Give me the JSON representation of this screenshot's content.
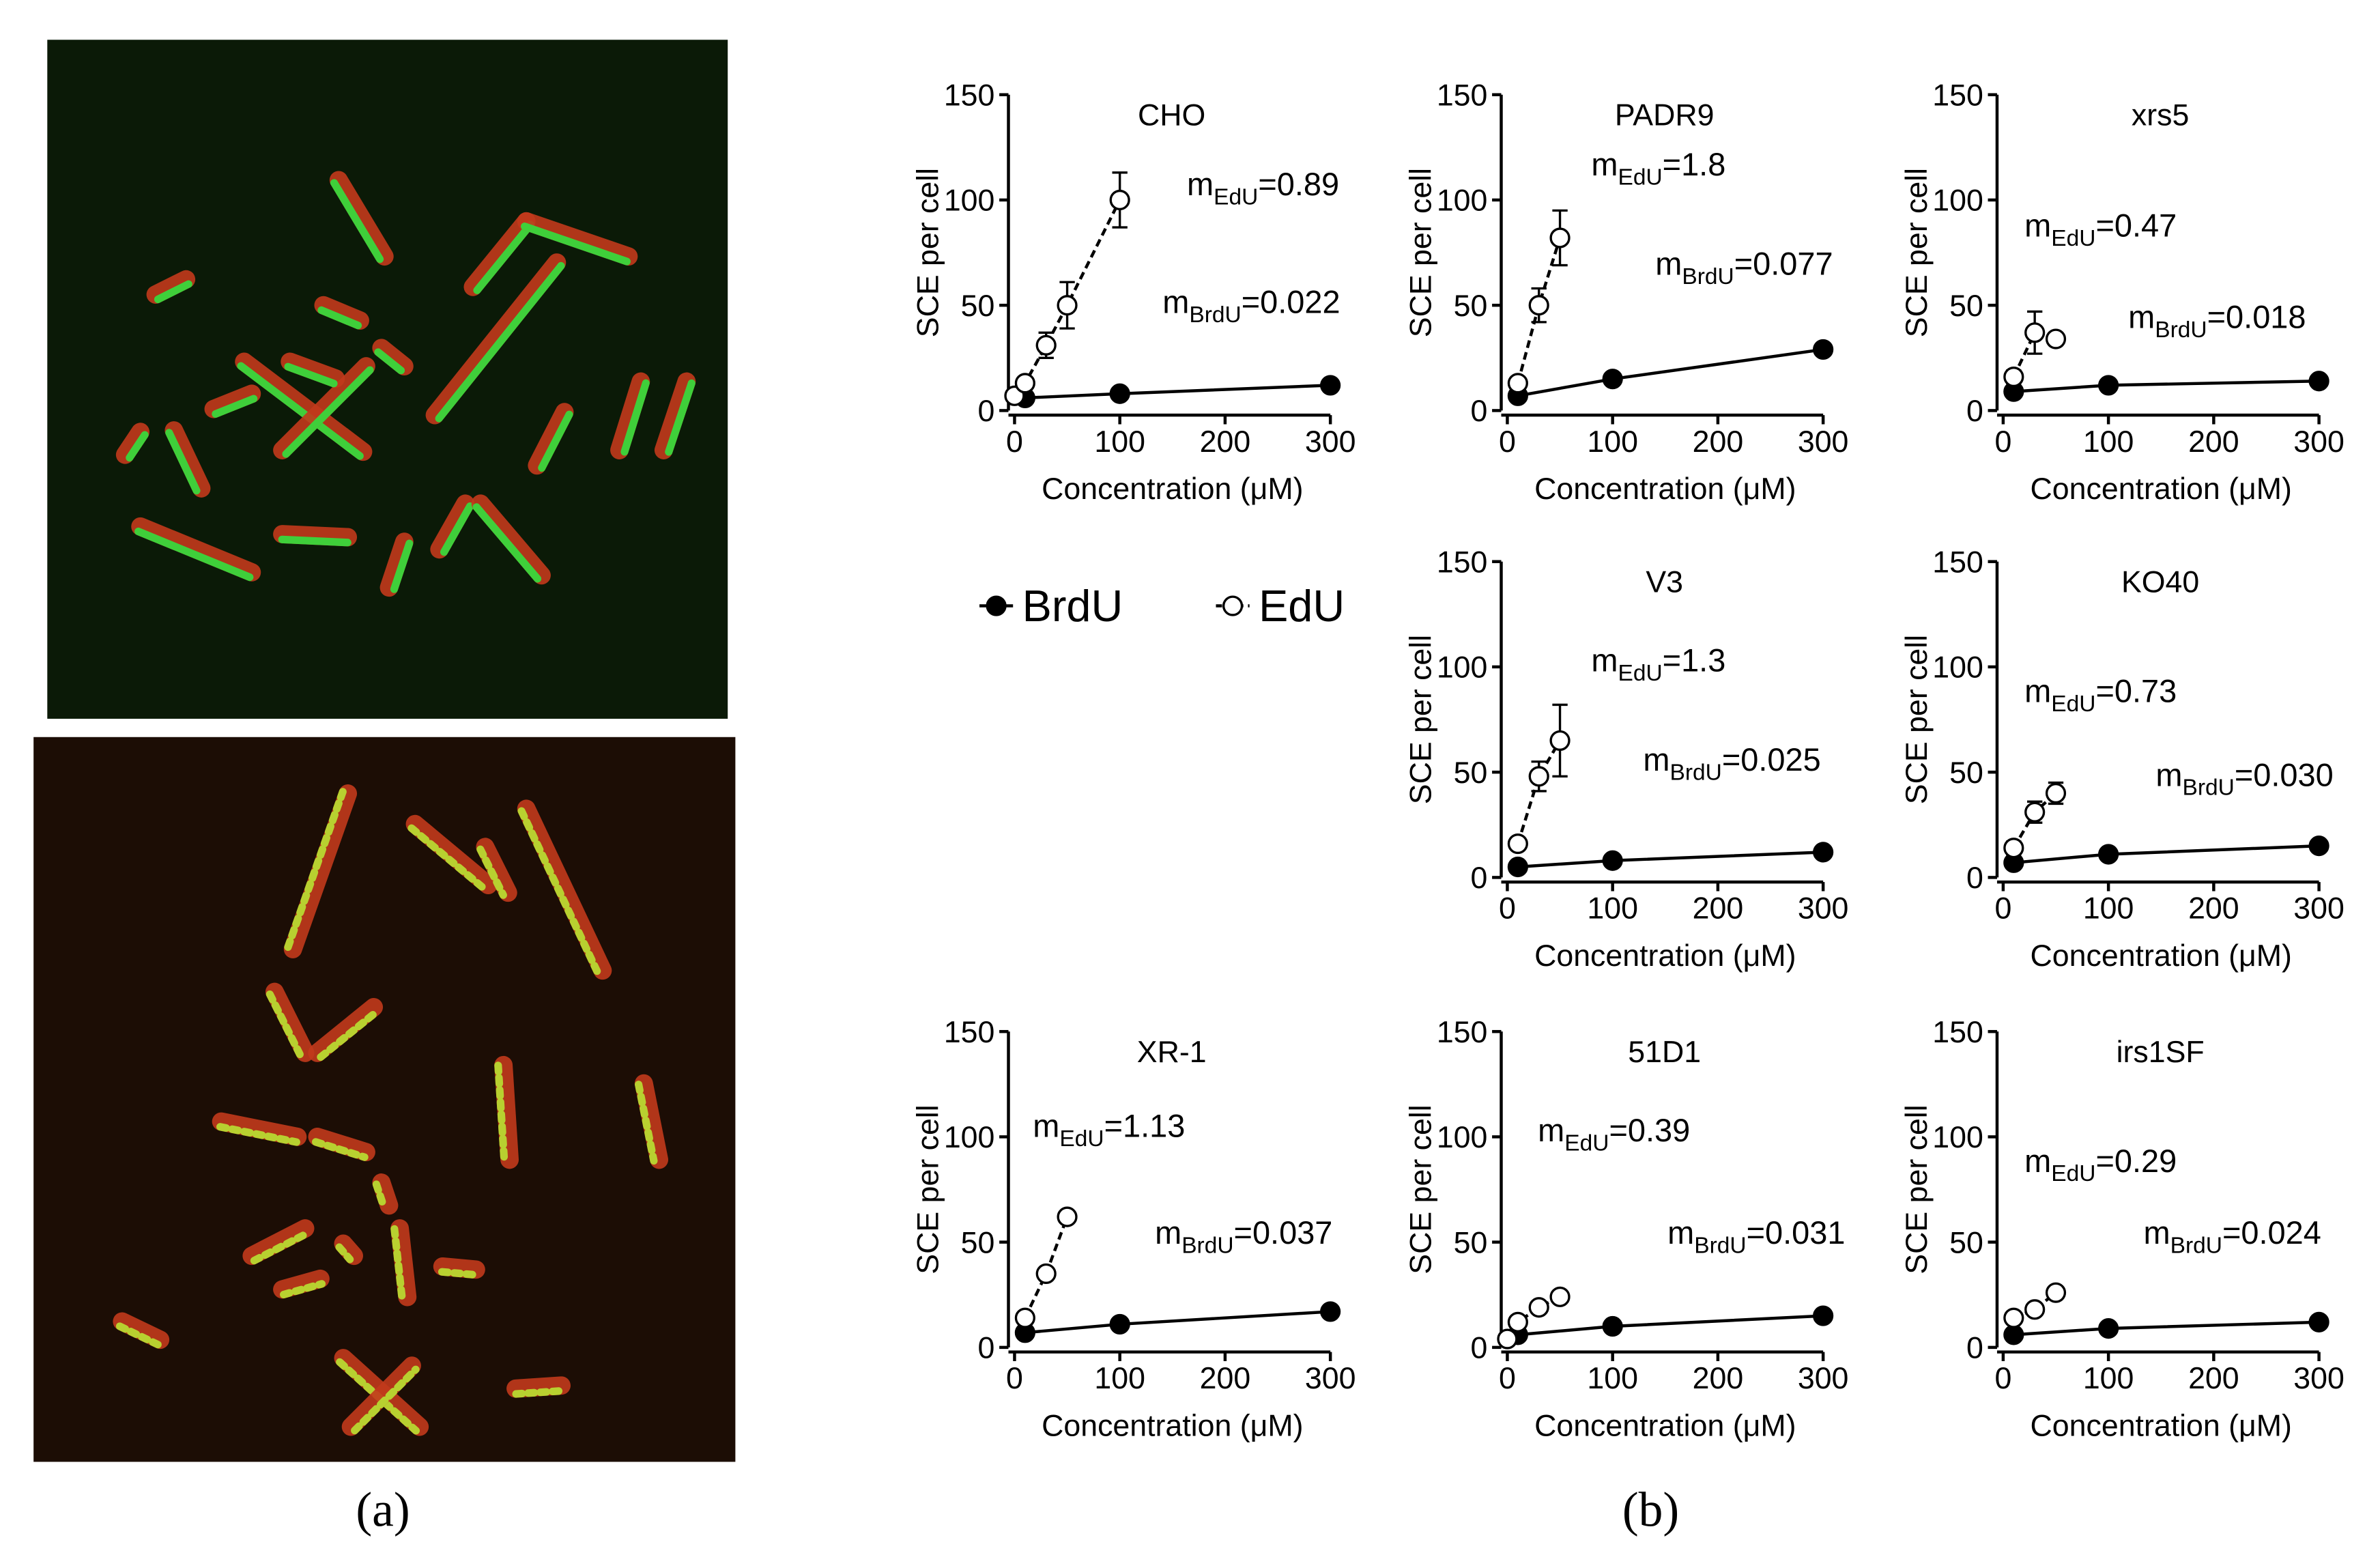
{
  "panel_labels": [
    "(a)",
    "(b)"
  ],
  "legend": [
    {
      "name": "BrdU",
      "marker": "filled",
      "color": "#000000"
    },
    {
      "name": "EdU",
      "marker": "open",
      "color": "#000000"
    }
  ],
  "chart_data": [
    {
      "type": "line",
      "title": "CHO",
      "x_label": "Concentration (μM)",
      "y_label": "SCE per cell",
      "xlim": [
        0,
        300
      ],
      "ylim": [
        0,
        150
      ],
      "xticks": [
        0,
        100,
        200,
        300
      ],
      "yticks": [
        0,
        50,
        100,
        150
      ],
      "annotations": [
        [
          "m",
          "EdU",
          "=0.89"
        ],
        [
          "m",
          "BrdU",
          "=0.022"
        ]
      ],
      "series": [
        {
          "marker": "filled",
          "line": "solid",
          "color": "#000000",
          "x": [
            10,
            100,
            300
          ],
          "values": [
            6,
            8,
            12
          ],
          "errors": [
            null,
            null,
            null
          ]
        },
        {
          "marker": "open",
          "line": "dashed",
          "color": "#000000",
          "x": [
            0,
            10,
            30,
            50,
            100
          ],
          "values": [
            7,
            13,
            31,
            50,
            100
          ],
          "errors": [
            null,
            null,
            6,
            11,
            13
          ]
        }
      ]
    },
    {
      "type": "line",
      "title": "PADR9",
      "x_label": "Concentration (μM)",
      "y_label": "SCE per cell",
      "xlim": [
        0,
        300
      ],
      "ylim": [
        0,
        150
      ],
      "xticks": [
        0,
        100,
        200,
        300
      ],
      "yticks": [
        0,
        50,
        100,
        150
      ],
      "annotations": [
        [
          "m",
          "EdU",
          "=1.8"
        ],
        [
          "m",
          "BrdU",
          "=0.077"
        ]
      ],
      "series": [
        {
          "marker": "filled",
          "line": "solid",
          "color": "#000000",
          "x": [
            10,
            100,
            300
          ],
          "values": [
            7,
            15,
            29
          ],
          "errors": [
            null,
            null,
            null
          ]
        },
        {
          "marker": "open",
          "line": "dashed",
          "color": "#000000",
          "x": [
            10,
            30,
            50
          ],
          "values": [
            13,
            50,
            82
          ],
          "errors": [
            null,
            8,
            13
          ]
        }
      ]
    },
    {
      "type": "line",
      "title": "xrs5",
      "x_label": "Concentration (μM)",
      "y_label": "SCE per cell",
      "xlim": [
        0,
        300
      ],
      "ylim": [
        0,
        150
      ],
      "xticks": [
        0,
        100,
        200,
        300
      ],
      "yticks": [
        0,
        50,
        100,
        150
      ],
      "annotations": [
        [
          "m",
          "EdU",
          "=0.47"
        ],
        [
          "m",
          "BrdU",
          "=0.018"
        ]
      ],
      "series": [
        {
          "marker": "filled",
          "line": "solid",
          "color": "#000000",
          "x": [
            10,
            100,
            300
          ],
          "values": [
            9,
            12,
            14
          ],
          "errors": [
            null,
            null,
            null
          ]
        },
        {
          "marker": "open",
          "line": "dashed",
          "color": "#000000",
          "x": [
            10,
            30,
            50
          ],
          "values": [
            16,
            37,
            34
          ],
          "errors": [
            3,
            10,
            2
          ]
        }
      ]
    },
    {
      "type": "line",
      "title": "V3",
      "x_label": "Concentration (μM)",
      "y_label": "SCE per cell",
      "xlim": [
        0,
        300
      ],
      "ylim": [
        0,
        150
      ],
      "xticks": [
        0,
        100,
        200,
        300
      ],
      "yticks": [
        0,
        50,
        100,
        150
      ],
      "annotations": [
        [
          "m",
          "EdU",
          "=1.3"
        ],
        [
          "m",
          "BrdU",
          "=0.025"
        ]
      ],
      "series": [
        {
          "marker": "filled",
          "line": "solid",
          "color": "#000000",
          "x": [
            10,
            100,
            300
          ],
          "values": [
            5,
            8,
            12
          ],
          "errors": [
            null,
            null,
            null
          ]
        },
        {
          "marker": "open",
          "line": "dashed",
          "color": "#000000",
          "x": [
            10,
            30,
            50
          ],
          "values": [
            16,
            48,
            65
          ],
          "errors": [
            null,
            7,
            17
          ]
        }
      ]
    },
    {
      "type": "line",
      "title": "KO40",
      "x_label": "Concentration (μM)",
      "y_label": "SCE per cell",
      "xlim": [
        0,
        300
      ],
      "ylim": [
        0,
        150
      ],
      "xticks": [
        0,
        100,
        200,
        300
      ],
      "yticks": [
        0,
        50,
        100,
        150
      ],
      "annotations": [
        [
          "m",
          "EdU",
          "=0.73"
        ],
        [
          "m",
          "BrdU",
          "=0.030"
        ]
      ],
      "series": [
        {
          "marker": "filled",
          "line": "solid",
          "color": "#000000",
          "x": [
            10,
            100,
            300
          ],
          "values": [
            7,
            11,
            15
          ],
          "errors": [
            null,
            null,
            null
          ]
        },
        {
          "marker": "open",
          "line": "dashed",
          "color": "#000000",
          "x": [
            10,
            30,
            50
          ],
          "values": [
            14,
            31,
            40
          ],
          "errors": [
            3,
            5,
            5
          ]
        }
      ]
    },
    {
      "type": "line",
      "title": "XR-1",
      "x_label": "Concentration (μM)",
      "y_label": "SCE per cell",
      "xlim": [
        0,
        300
      ],
      "ylim": [
        0,
        150
      ],
      "xticks": [
        0,
        100,
        200,
        300
      ],
      "yticks": [
        0,
        50,
        100,
        150
      ],
      "annotations": [
        [
          "m",
          "EdU",
          "=1.13"
        ],
        [
          "m",
          "BrdU",
          "=0.037"
        ]
      ],
      "series": [
        {
          "marker": "filled",
          "line": "solid",
          "color": "#000000",
          "x": [
            10,
            100,
            300
          ],
          "values": [
            7,
            11,
            17
          ],
          "errors": [
            null,
            null,
            null
          ]
        },
        {
          "marker": "open",
          "line": "dashed",
          "color": "#000000",
          "x": [
            10,
            30,
            50
          ],
          "values": [
            14,
            35,
            62
          ],
          "errors": [
            null,
            null,
            null
          ]
        }
      ]
    },
    {
      "type": "line",
      "title": "51D1",
      "x_label": "Concentration (μM)",
      "y_label": "SCE per cell",
      "xlim": [
        0,
        300
      ],
      "ylim": [
        0,
        150
      ],
      "xticks": [
        0,
        100,
        200,
        300
      ],
      "yticks": [
        0,
        50,
        100,
        150
      ],
      "annotations": [
        [
          "m",
          "EdU",
          "=0.39"
        ],
        [
          "m",
          "BrdU",
          "=0.031"
        ]
      ],
      "series": [
        {
          "marker": "filled",
          "line": "solid",
          "color": "#000000",
          "x": [
            10,
            100,
            300
          ],
          "values": [
            6,
            10,
            15
          ],
          "errors": [
            null,
            null,
            null
          ]
        },
        {
          "marker": "open",
          "line": "dashed",
          "color": "#000000",
          "x": [
            0,
            10,
            30,
            50
          ],
          "values": [
            4,
            12,
            19,
            24
          ],
          "errors": [
            null,
            null,
            null,
            null
          ]
        }
      ]
    },
    {
      "type": "line",
      "title": "irs1SF",
      "x_label": "Concentration (μM)",
      "y_label": "SCE per cell",
      "xlim": [
        0,
        300
      ],
      "ylim": [
        0,
        150
      ],
      "xticks": [
        0,
        100,
        200,
        300
      ],
      "yticks": [
        0,
        50,
        100,
        150
      ],
      "annotations": [
        [
          "m",
          "EdU",
          "=0.29"
        ],
        [
          "m",
          "BrdU",
          "=0.024"
        ]
      ],
      "series": [
        {
          "marker": "filled",
          "line": "solid",
          "color": "#000000",
          "x": [
            10,
            100,
            300
          ],
          "values": [
            6,
            9,
            12
          ],
          "errors": [
            null,
            null,
            null
          ]
        },
        {
          "marker": "open",
          "line": "dashed",
          "color": "#000000",
          "x": [
            10,
            30,
            50
          ],
          "values": [
            14,
            18,
            26
          ],
          "errors": [
            null,
            null,
            null
          ]
        }
      ]
    }
  ]
}
